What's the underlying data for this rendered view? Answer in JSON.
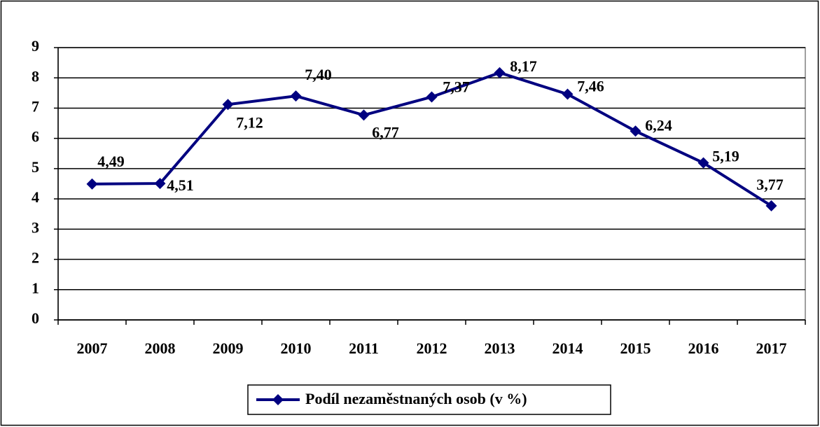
{
  "chart_data": {
    "type": "line",
    "categories": [
      "2007",
      "2008",
      "2009",
      "2010",
      "2011",
      "2012",
      "2013",
      "2014",
      "2015",
      "2016",
      "2017"
    ],
    "series": [
      {
        "name": "Podíl nezaměstnaných osob (v %)",
        "color": "#000080",
        "values": [
          4.49,
          4.51,
          7.12,
          7.4,
          6.77,
          7.37,
          8.17,
          7.46,
          6.24,
          5.19,
          3.77
        ],
        "value_labels": [
          "4,49",
          "4,51",
          "7,12",
          "7,40",
          "6,77",
          "7,37",
          "8,17",
          "7,46",
          "6,24",
          "5,19",
          "3,77"
        ]
      }
    ],
    "ylim": [
      0,
      9
    ],
    "yticks": [
      0,
      1,
      2,
      3,
      4,
      5,
      6,
      7,
      8,
      9
    ],
    "grid": true,
    "legend": "bottom"
  }
}
